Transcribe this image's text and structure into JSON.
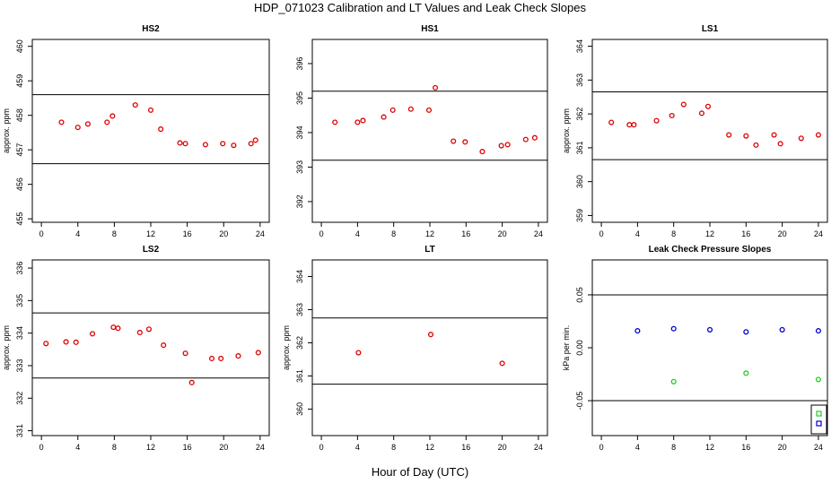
{
  "figure": {
    "title": "HDP_071023  Calibration and LT Values and Leak Check Slopes",
    "xlabel": "Hour of Day (UTC)"
  },
  "colors": {
    "point": "#dd0000",
    "green": "#22cc22",
    "blue": "#0000cc",
    "line": "#000000"
  },
  "chart_data": [
    {
      "type": "scatter",
      "title": "HS2",
      "ylabel": "approx. ppm",
      "xlim": [
        -1,
        25
      ],
      "ylim": [
        454.9,
        460.2
      ],
      "x_ticks": [
        "0",
        "4",
        "8",
        "12",
        "16",
        "20",
        "24"
      ],
      "y_ticks": [
        "455",
        "456",
        "457",
        "458",
        "459",
        "460"
      ],
      "hlines": [
        458.6,
        456.6
      ],
      "series": [
        {
          "color": "#dd0000",
          "x": [
            2.2,
            4.0,
            5.1,
            7.2,
            7.8,
            10.3,
            12.0,
            13.1,
            15.2,
            15.8,
            18.0,
            19.9,
            21.1,
            23.0,
            23.5
          ],
          "y": [
            457.8,
            457.65,
            457.75,
            457.8,
            457.98,
            458.3,
            458.15,
            457.6,
            457.2,
            457.18,
            457.15,
            457.18,
            457.13,
            457.18,
            457.28
          ]
        }
      ]
    },
    {
      "type": "scatter",
      "title": "HS1",
      "ylabel": "",
      "xlim": [
        -1,
        25
      ],
      "ylim": [
        391.4,
        396.7
      ],
      "x_ticks": [
        "0",
        "4",
        "8",
        "12",
        "16",
        "20",
        "24"
      ],
      "y_ticks": [
        "392",
        "393",
        "394",
        "395",
        "396"
      ],
      "hlines": [
        395.2,
        393.2
      ],
      "series": [
        {
          "color": "#dd0000",
          "x": [
            1.5,
            4.0,
            4.6,
            6.9,
            7.9,
            9.9,
            11.9,
            12.6,
            14.6,
            15.9,
            17.8,
            19.9,
            20.6,
            22.6,
            23.6
          ],
          "y": [
            394.3,
            394.3,
            394.35,
            394.45,
            394.65,
            394.68,
            394.65,
            395.3,
            393.75,
            393.73,
            393.45,
            393.62,
            393.65,
            393.8,
            393.85
          ]
        }
      ]
    },
    {
      "type": "scatter",
      "title": "LS1",
      "ylabel": "approx. ppm",
      "xlim": [
        -1,
        25
      ],
      "ylim": [
        358.8,
        364.2
      ],
      "x_ticks": [
        "0",
        "4",
        "8",
        "12",
        "16",
        "20",
        "24"
      ],
      "y_ticks": [
        "359",
        "360",
        "361",
        "362",
        "363",
        "364"
      ],
      "hlines": [
        362.65,
        360.65
      ],
      "series": [
        {
          "color": "#dd0000",
          "x": [
            1.1,
            3.1,
            3.6,
            6.1,
            7.8,
            9.1,
            11.1,
            11.8,
            14.1,
            16.0,
            17.1,
            19.1,
            19.8,
            22.1,
            24.0
          ],
          "y": [
            361.75,
            361.68,
            361.68,
            361.8,
            361.95,
            362.28,
            362.02,
            362.22,
            361.38,
            361.35,
            361.08,
            361.38,
            361.12,
            361.28,
            361.38
          ]
        }
      ]
    },
    {
      "type": "scatter",
      "title": "LS2",
      "ylabel": "approx. ppm",
      "xlim": [
        -1,
        25
      ],
      "ylim": [
        330.85,
        336.25
      ],
      "x_ticks": [
        "0",
        "4",
        "8",
        "12",
        "16",
        "20",
        "24"
      ],
      "y_ticks": [
        "331",
        "332",
        "333",
        "334",
        "335",
        "336"
      ],
      "hlines": [
        334.62,
        332.62
      ],
      "series": [
        {
          "color": "#dd0000",
          "x": [
            0.5,
            2.7,
            3.8,
            5.6,
            7.9,
            8.4,
            10.8,
            11.8,
            13.4,
            15.8,
            16.5,
            18.7,
            19.7,
            21.6,
            23.8
          ],
          "y": [
            333.68,
            333.73,
            333.72,
            333.98,
            334.18,
            334.15,
            334.02,
            334.12,
            333.63,
            333.38,
            332.48,
            333.22,
            333.22,
            333.3,
            333.4
          ]
        }
      ]
    },
    {
      "type": "scatter",
      "title": "LT",
      "ylabel": "approx. ppm",
      "xlim": [
        -1,
        25
      ],
      "ylim": [
        359.2,
        364.5
      ],
      "x_ticks": [
        "0",
        "4",
        "8",
        "12",
        "16",
        "20",
        "24"
      ],
      "y_ticks": [
        "360",
        "361",
        "362",
        "363",
        "364"
      ],
      "hlines": [
        362.75,
        360.75
      ],
      "series": [
        {
          "color": "#dd0000",
          "x": [
            4.1,
            12.1,
            20.0
          ],
          "y": [
            361.7,
            362.25,
            361.38
          ]
        }
      ]
    },
    {
      "type": "scatter",
      "title": "Leak Check Pressure Slopes",
      "ylabel": "kPa per min.",
      "xlim": [
        -1,
        25
      ],
      "ylim": [
        -0.083,
        0.083
      ],
      "x_ticks": [
        "0",
        "4",
        "8",
        "12",
        "16",
        "20",
        "24"
      ],
      "y_ticks": [
        "-0.05",
        "0.00",
        "0.05"
      ],
      "hlines": [
        0.05,
        -0.05
      ],
      "series": [
        {
          "color": "#0000cc",
          "x": [
            4.0,
            8.0,
            12.0,
            16.0,
            20.0,
            24.0
          ],
          "y": [
            0.016,
            0.018,
            0.017,
            0.015,
            0.017,
            0.016
          ]
        },
        {
          "color": "#22cc22",
          "x": [
            8.0,
            16.0,
            24.0
          ],
          "y": [
            -0.032,
            -0.024,
            -0.03
          ]
        }
      ],
      "legend": {
        "position": "bottom-right"
      }
    }
  ]
}
